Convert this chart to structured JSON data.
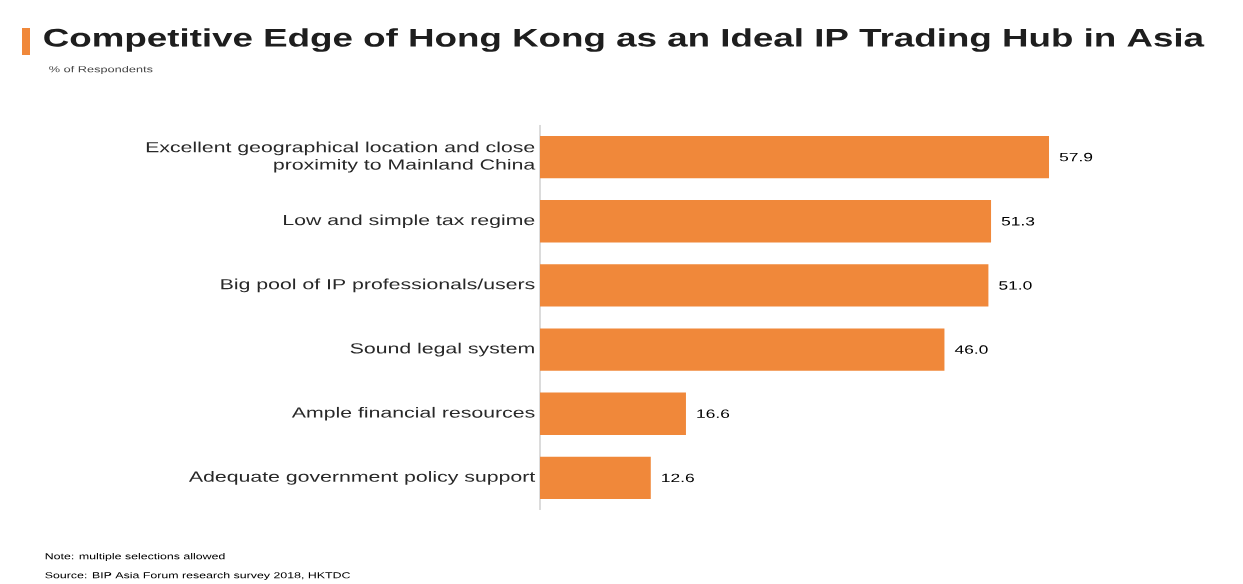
{
  "chart_data": {
    "type": "bar",
    "orientation": "horizontal",
    "title": "Competitive Edge of Hong Kong as an Ideal IP Trading Hub in Asia",
    "subtitle": "% of Respondents",
    "categories": [
      "Excellent geographical location and close proximity to Mainland China",
      "Low and simple tax regime",
      "Big pool of IP professionals/users",
      "Sound legal system",
      "Ample financial resources",
      "Adequate government policy support"
    ],
    "values": [
      57.9,
      51.3,
      51.0,
      46.0,
      16.6,
      12.6
    ],
    "color": "#f0883a",
    "value_labels": [
      "57.9",
      "51.3",
      "51.0",
      "46.0",
      "16.6",
      "12.6"
    ],
    "annotations": [
      "Note: multiple selections allowed",
      "Source: BIP Asia Forum research survey 2018, HKTDC"
    ]
  }
}
